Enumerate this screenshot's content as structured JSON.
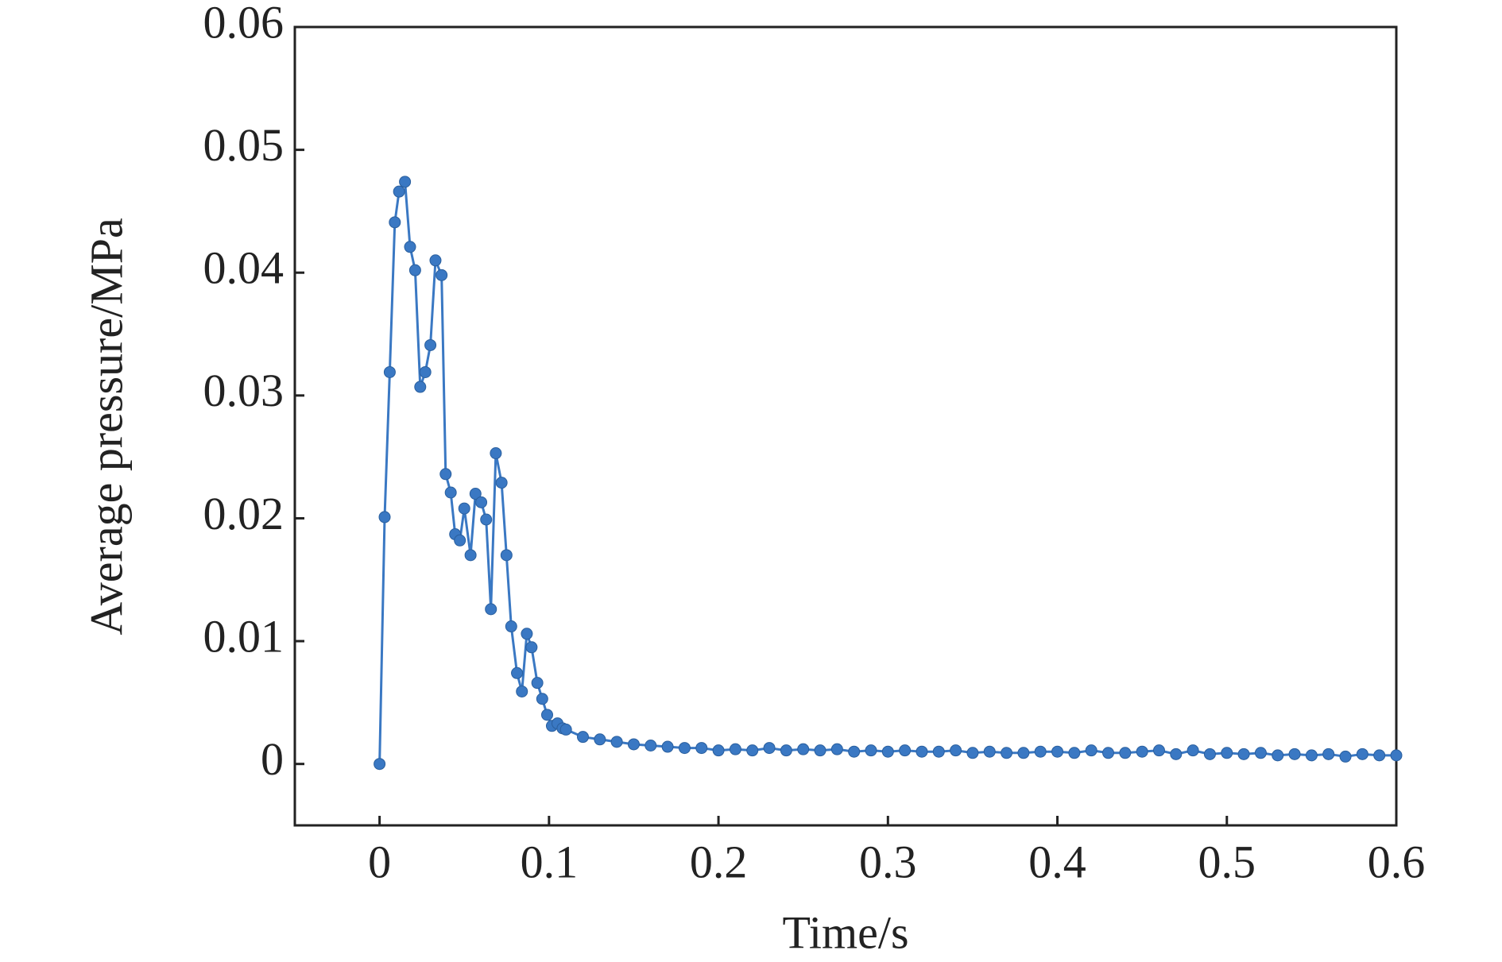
{
  "chart_data": {
    "type": "line",
    "xlabel": "Time/s",
    "ylabel": "Average pressure/MPa",
    "color": "#3a78c3",
    "markers": true,
    "grid": false,
    "xlim": [
      -0.05,
      0.6
    ],
    "xticks": [
      0,
      0.1,
      0.2,
      0.3,
      0.4,
      0.5,
      0.6
    ],
    "ylim": [
      -0.005,
      0.06
    ],
    "yticks": [
      0,
      0.01,
      0.02,
      0.03,
      0.04,
      0.05,
      0.06
    ],
    "x": [
      0,
      0.003,
      0.006,
      0.009,
      0.0115,
      0.015,
      0.018,
      0.021,
      0.024,
      0.027,
      0.03,
      0.033,
      0.0366,
      0.039,
      0.042,
      0.0446,
      0.0474,
      0.05,
      0.0537,
      0.0566,
      0.06,
      0.0629,
      0.0657,
      0.0686,
      0.072,
      0.0749,
      0.0777,
      0.0811,
      0.084,
      0.0869,
      0.0897,
      0.0931,
      0.096,
      0.0989,
      0.1017,
      0.105,
      0.108,
      0.11,
      0.12,
      0.13,
      0.14,
      0.15,
      0.16,
      0.17,
      0.18,
      0.19,
      0.2,
      0.21,
      0.22,
      0.23,
      0.24,
      0.25,
      0.26,
      0.27,
      0.28,
      0.29,
      0.3,
      0.31,
      0.32,
      0.33,
      0.34,
      0.35,
      0.36,
      0.37,
      0.38,
      0.39,
      0.4,
      0.41,
      0.42,
      0.43,
      0.44,
      0.45,
      0.46,
      0.47,
      0.48,
      0.49,
      0.5,
      0.51,
      0.52,
      0.53,
      0.54,
      0.55,
      0.56,
      0.57,
      0.58,
      0.59,
      0.6
    ],
    "values": [
      0,
      0.0201,
      0.0319,
      0.0441,
      0.0466,
      0.0474,
      0.0421,
      0.0402,
      0.0307,
      0.0319,
      0.0341,
      0.041,
      0.0398,
      0.0236,
      0.0221,
      0.0187,
      0.0182,
      0.0208,
      0.017,
      0.022,
      0.0213,
      0.0199,
      0.0126,
      0.0253,
      0.0229,
      0.017,
      0.0112,
      0.0074,
      0.0059,
      0.0106,
      0.0095,
      0.0066,
      0.0053,
      0.004,
      0.0031,
      0.0033,
      0.0029,
      0.0028,
      0.0022,
      0.002,
      0.0018,
      0.0016,
      0.0015,
      0.0014,
      0.0013,
      0.0013,
      0.0011,
      0.0012,
      0.0011,
      0.0013,
      0.0011,
      0.0012,
      0.0011,
      0.0012,
      0.001,
      0.0011,
      0.001,
      0.0011,
      0.001,
      0.001,
      0.0011,
      0.0009,
      0.001,
      0.0009,
      0.0009,
      0.001,
      0.001,
      0.0009,
      0.0011,
      0.0009,
      0.0009,
      0.001,
      0.0011,
      0.0008,
      0.0011,
      0.0008,
      0.0009,
      0.0008,
      0.0009,
      0.0007,
      0.0008,
      0.0007,
      0.0008,
      0.0006,
      0.0008,
      0.0007,
      0.0007
    ]
  }
}
